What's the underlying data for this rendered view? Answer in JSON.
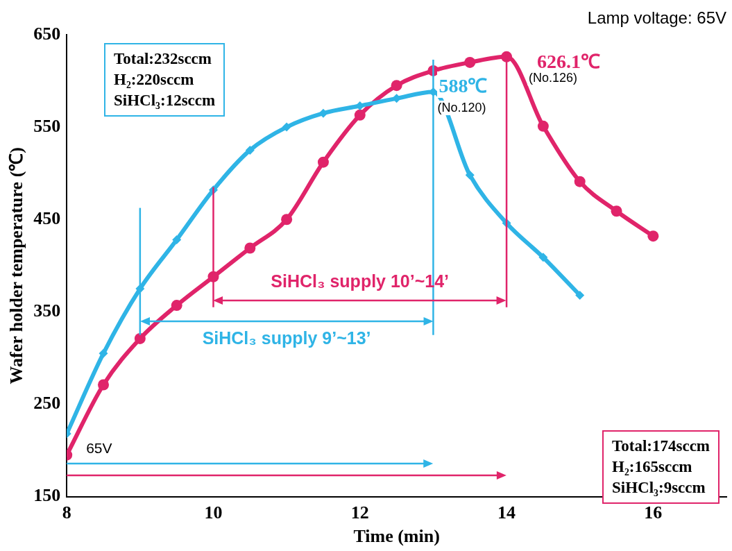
{
  "chart_data": {
    "type": "line",
    "xlabel": "Time (min)",
    "ylabel": "Wafer holder temperature (℃)",
    "xlim": [
      8,
      17
    ],
    "xticks": [
      8,
      10,
      12,
      14,
      16
    ],
    "ylim": [
      150,
      650
    ],
    "yticks": [
      150,
      250,
      350,
      450,
      550,
      650
    ],
    "grid": false,
    "legend": false,
    "line_style": "solid",
    "series": [
      {
        "color": "#2fb4e6",
        "marker": "diamond",
        "x": [
          8,
          8.5,
          9,
          9.5,
          10,
          10.5,
          11,
          11.5,
          12,
          12.5,
          13,
          13.5,
          14,
          14.5,
          15
        ],
        "values": [
          218,
          305,
          375,
          428,
          482,
          525,
          550,
          565,
          573,
          581,
          588,
          498,
          446,
          409,
          368
        ]
      },
      {
        "color": "#e0246a",
        "marker": "circle",
        "x": [
          8,
          8.5,
          9,
          9.5,
          10,
          10.5,
          11,
          11.5,
          12,
          12.5,
          13,
          13.5,
          14,
          14.5,
          15,
          15.5,
          16
        ],
        "values": [
          195,
          271,
          321,
          357,
          388,
          419,
          450,
          512,
          563,
          595,
          611,
          620,
          626.1,
          551,
          491,
          459,
          432
        ]
      }
    ],
    "ref_lines": [
      {
        "axis": "x",
        "value": 9,
        "color": "#2fb4e6"
      },
      {
        "axis": "x",
        "value": 10,
        "color": "#e0246a"
      },
      {
        "axis": "x",
        "value": 13,
        "color": "#2fb4e6"
      },
      {
        "axis": "x",
        "value": 14,
        "color": "#e0246a"
      }
    ],
    "annotations": [
      "588℃",
      "(No.120)",
      "626.1℃",
      "(No.126)",
      "Lamp voltage: 65V",
      "Total:232sccm\nH₂:220sccm\nSiHCl₃:12sccm",
      "Total:174sccm\nH₂:165sccm\nSiHCl₃:9sccm",
      "SiHCl₃ supply 9’~13’",
      "SiHCl₃ supply 10’~14’",
      "65V"
    ]
  }
}
